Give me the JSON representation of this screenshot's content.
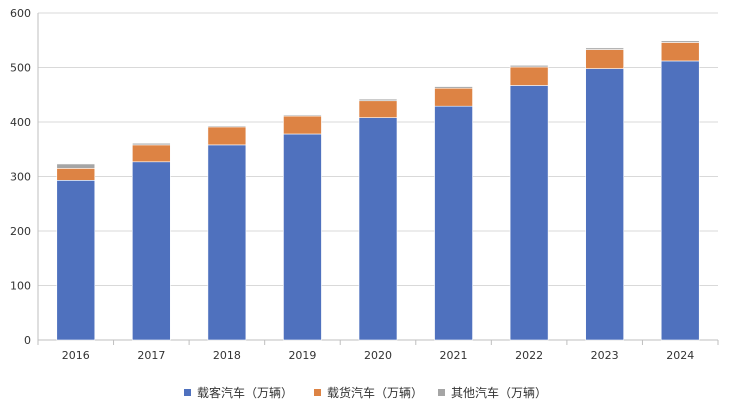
{
  "chart_data": {
    "type": "bar",
    "stacked": true,
    "categories": [
      "2016",
      "2017",
      "2018",
      "2019",
      "2020",
      "2021",
      "2022",
      "2023",
      "2024"
    ],
    "series": [
      {
        "name": "载客汽车（万辆）",
        "color": "#4F71BE",
        "values": [
          293,
          327,
          358,
          378,
          408,
          429,
          467,
          498,
          512
        ]
      },
      {
        "name": "载货汽车（万辆）",
        "color": "#DD8344",
        "values": [
          22,
          31,
          33,
          33,
          31,
          33,
          34,
          35,
          34
        ]
      },
      {
        "name": "其他汽车（万辆）",
        "color": "#A5A5A5",
        "values": [
          8,
          3,
          2,
          2,
          3,
          3,
          3,
          3,
          3
        ]
      }
    ],
    "ylim": [
      0,
      600
    ],
    "yticks": [
      0,
      100,
      200,
      300,
      400,
      500,
      600
    ],
    "grid": true,
    "legend_position": "bottom-center",
    "title": "",
    "xlabel": "",
    "ylabel": ""
  }
}
